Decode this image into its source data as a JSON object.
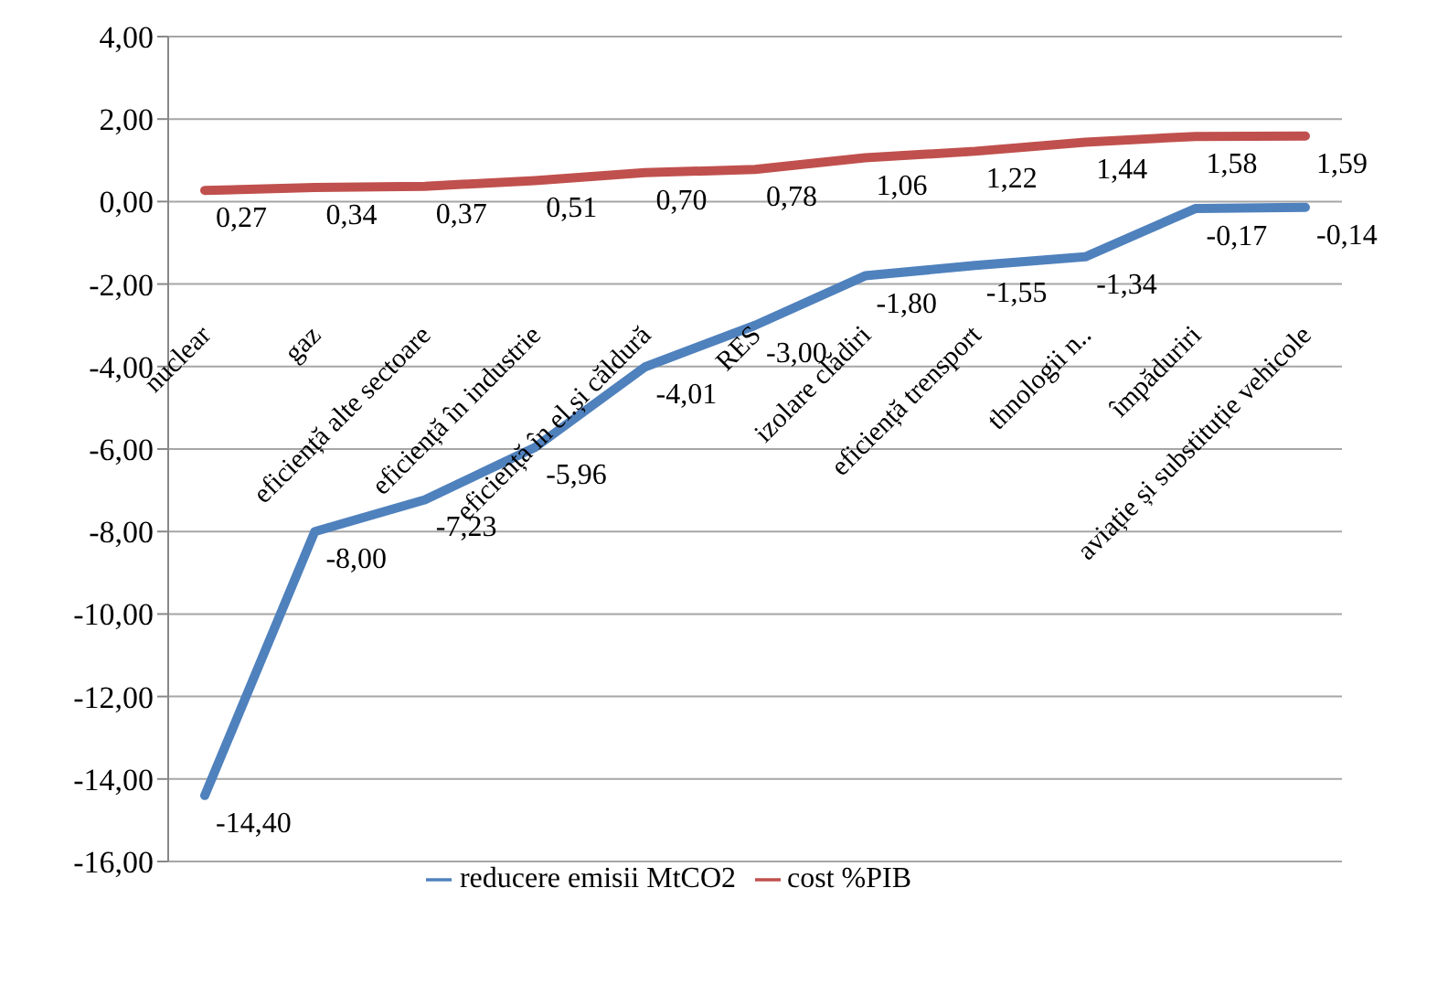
{
  "chart_data": {
    "type": "line",
    "categories": [
      "nuclear",
      "gaz",
      "eficiență alte sectoare",
      "eficiență în industrie",
      "eficiență în el.și căldură",
      "RES",
      "izolare clădiri",
      "eficiență trensport",
      "thnologii n..",
      "împăduriri",
      "aviație și substituție vehicole"
    ],
    "series": [
      {
        "name": "reducere emisii MtCO2",
        "color": "#4f81bd",
        "values": [
          -14.4,
          -8.0,
          -7.23,
          -5.96,
          -4.01,
          -3.0,
          -1.8,
          -1.55,
          -1.34,
          -0.17,
          -0.14
        ],
        "value_labels": [
          "-14,40",
          "-8,00",
          "-7,23",
          "-5,96",
          "-4,01",
          "-3,00",
          "-1,80",
          "-1,55",
          "-1,34",
          "-0,17",
          "-0,14"
        ]
      },
      {
        "name": "cost %PIB",
        "color": "#c0504d",
        "values": [
          0.27,
          0.34,
          0.37,
          0.51,
          0.7,
          0.78,
          1.06,
          1.22,
          1.44,
          1.58,
          1.59
        ],
        "value_labels": [
          "0,27",
          "0,34",
          "0,37",
          "0,51",
          "0,70",
          "0,78",
          "1,06",
          "1,22",
          "1,44",
          "1,58",
          "1,59"
        ]
      }
    ],
    "ylim": [
      -16,
      4
    ],
    "yticks": [
      {
        "value": -16,
        "label": "-16,00"
      },
      {
        "value": -14,
        "label": "-14,00"
      },
      {
        "value": -12,
        "label": "-12,00"
      },
      {
        "value": -10,
        "label": "-10,00"
      },
      {
        "value": -8,
        "label": "-8,00"
      },
      {
        "value": -6,
        "label": "-6,00"
      },
      {
        "value": -4,
        "label": "-4,00"
      },
      {
        "value": -2,
        "label": "-2,00"
      },
      {
        "value": 0,
        "label": "0,00"
      },
      {
        "value": 2,
        "label": "2,00"
      },
      {
        "value": 4,
        "label": "4,00"
      }
    ],
    "grid": "y",
    "legend": "bottom",
    "marker": "none",
    "line_style": "solid"
  }
}
